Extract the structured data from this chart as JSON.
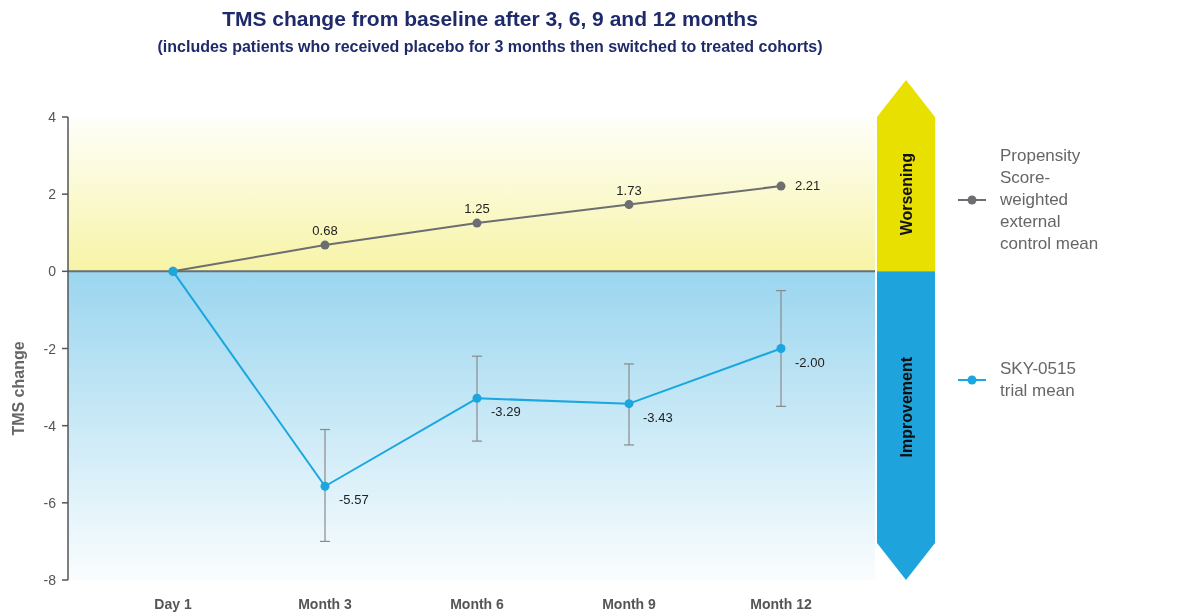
{
  "chart_data": {
    "type": "line",
    "title": "TMS change from baseline after 3, 6, 9 and 12 months",
    "subtitle": "(includes patients who received placebo for 3 months then switched to treated cohorts)",
    "ylabel": "TMS change",
    "categories": [
      "Day 1",
      "Month 3",
      "Month 6",
      "Month 9",
      "Month 12"
    ],
    "series": [
      {
        "name": "Propensity Score-weighted external control mean",
        "color": "#6d6e71",
        "values": [
          0,
          0.68,
          1.25,
          1.73,
          2.21
        ],
        "value_labels": [
          null,
          "0.68",
          "1.25",
          "1.73",
          "2.21"
        ]
      },
      {
        "name": "SKY-0515 trial mean",
        "color": "#1aa7e0",
        "values": [
          0,
          -5.57,
          -3.29,
          -3.43,
          -2.0
        ],
        "value_labels": [
          null,
          "-5.57",
          "-3.29",
          "-3.43",
          "-2.00"
        ],
        "errors": [
          null,
          [
            -7.0,
            -4.1
          ],
          [
            -4.4,
            -2.2
          ],
          [
            -4.5,
            -2.4
          ],
          [
            -3.5,
            -0.5
          ]
        ]
      }
    ],
    "ylim": [
      -8,
      4
    ],
    "yticks": [
      -8,
      -6,
      -4,
      -2,
      0,
      2,
      4
    ],
    "bands": [
      {
        "axis": "y",
        "from": 0,
        "to": 4,
        "label": "Worsening",
        "color": "#e8e000"
      },
      {
        "axis": "y",
        "from": -8,
        "to": 0,
        "label": "Improvement",
        "color": "#1fa3dc"
      }
    ],
    "ref_lines": [
      {
        "axis": "y",
        "value": 0,
        "color": "#6d6e71"
      }
    ],
    "marker": "circle",
    "line_style": "solid",
    "legend": "right",
    "grid": false
  }
}
